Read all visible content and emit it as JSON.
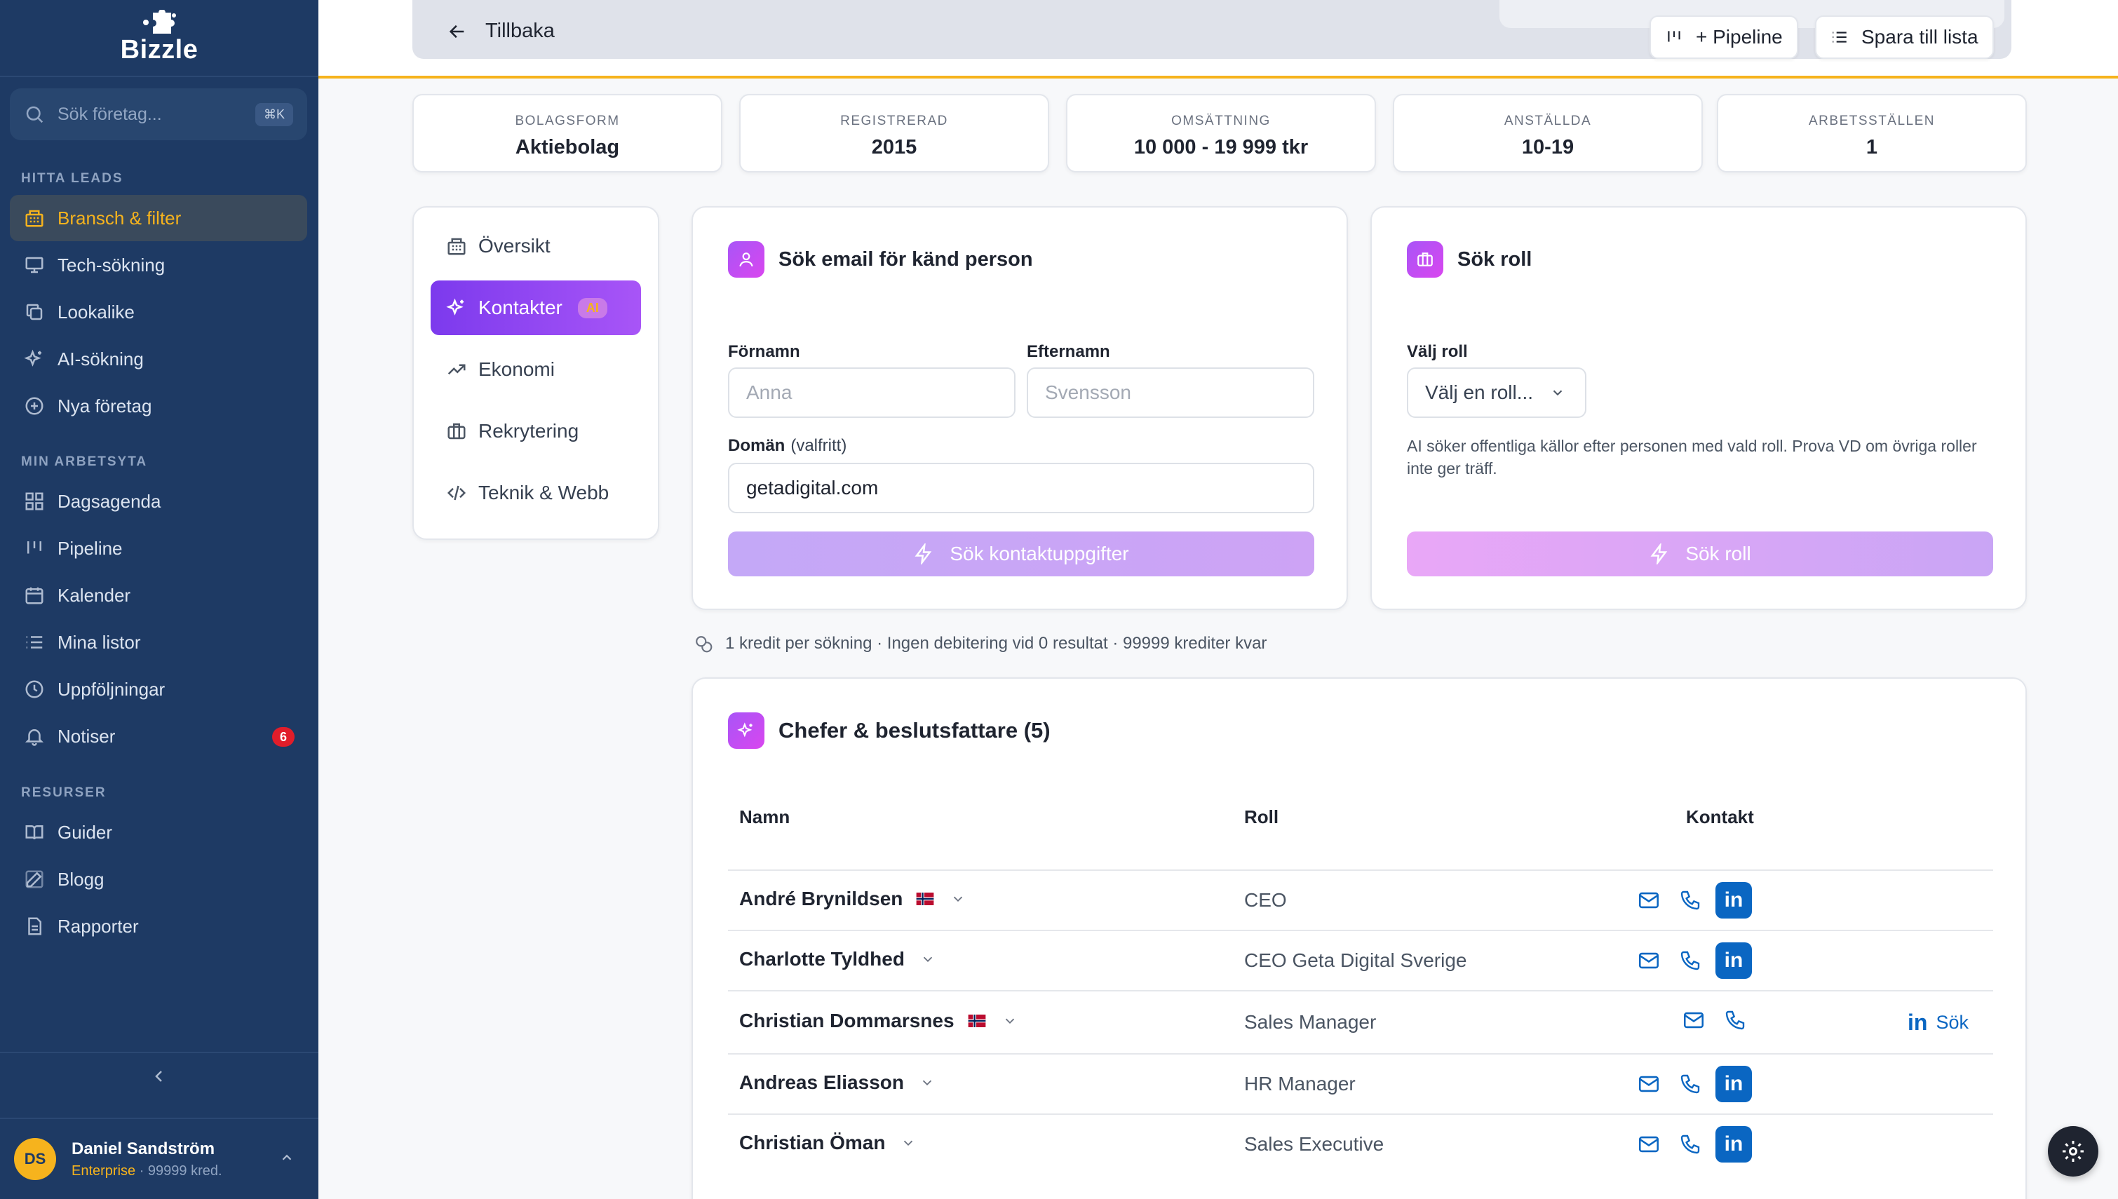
{
  "app": {
    "brand": "Bizzle"
  },
  "sidebar": {
    "search_placeholder": "Sök företag...",
    "search_shortcut": "⌘K",
    "sections": [
      {
        "title": "HITTA LEADS",
        "items": [
          {
            "label": "Bransch & filter",
            "icon": "filter-icon",
            "active": true
          },
          {
            "label": "Tech-sökning",
            "icon": "monitor-icon"
          },
          {
            "label": "Lookalike",
            "icon": "copy-icon"
          },
          {
            "label": "AI-sökning",
            "icon": "sparkles-icon"
          },
          {
            "label": "Nya företag",
            "icon": "plus-circle-icon"
          }
        ]
      },
      {
        "title": "MIN ARBETSYTA",
        "items": [
          {
            "label": "Dagsagenda",
            "icon": "grid-icon"
          },
          {
            "label": "Pipeline",
            "icon": "pipeline-icon"
          },
          {
            "label": "Kalender",
            "icon": "calendar-icon"
          },
          {
            "label": "Mina listor",
            "icon": "list-icon"
          },
          {
            "label": "Uppföljningar",
            "icon": "clock-icon"
          },
          {
            "label": "Notiser",
            "icon": "bell-icon",
            "badge": "6"
          }
        ]
      },
      {
        "title": "RESURSER",
        "items": [
          {
            "label": "Guider",
            "icon": "book-icon"
          },
          {
            "label": "Blogg",
            "icon": "edit-icon"
          },
          {
            "label": "Rapporter",
            "icon": "report-icon"
          }
        ]
      }
    ],
    "user": {
      "initials": "DS",
      "name": "Daniel Sandström",
      "plan": "Enterprise",
      "credits": "· 99999 kred."
    }
  },
  "topbar": {
    "back_label": "Tillbaka",
    "pipeline_label": "+ Pipeline",
    "save_label": "Spara till lista"
  },
  "stats": [
    {
      "label": "BOLAGSFORM",
      "value": "Aktiebolag"
    },
    {
      "label": "REGISTRERAD",
      "value": "2015"
    },
    {
      "label": "OMSÄTTNING",
      "value": "10 000 - 19 999 tkr"
    },
    {
      "label": "ANSTÄLLDA",
      "value": "10-19"
    },
    {
      "label": "ARBETSSTÄLLEN",
      "value": "1"
    }
  ],
  "tabs": [
    {
      "label": "Översikt"
    },
    {
      "label": "Kontakter",
      "ai": "AI",
      "active": true
    },
    {
      "label": "Ekonomi"
    },
    {
      "label": "Rekrytering"
    },
    {
      "label": "Teknik & Webb"
    }
  ],
  "email_search": {
    "title": "Sök email för känd person",
    "first_label": "Förnamn",
    "first_placeholder": "Anna",
    "last_label": "Efternamn",
    "last_placeholder": "Svensson",
    "domain_label": "Domän",
    "domain_optional": "(valfritt)",
    "domain_value": "getadigital.com",
    "button": "Sök kontaktuppgifter"
  },
  "role_search": {
    "title": "Sök roll",
    "role_label": "Välj roll",
    "role_placeholder": "Välj en roll...",
    "help": "AI söker offentliga källor efter personen med vald roll. Prova VD om övriga roller inte ger träff.",
    "button": "Sök roll"
  },
  "credits_note": "1 kredit per sökning · Ingen debitering vid 0 resultat · 99999 krediter kvar",
  "contacts": {
    "title": "Chefer & beslutsfattare (5)",
    "headers": {
      "name": "Namn",
      "role": "Roll",
      "contact": "Kontakt"
    },
    "linkedin_search": "Sök",
    "rows": [
      {
        "name": "André Brynildsen",
        "flag": "no",
        "role": "CEO",
        "linkedin": true
      },
      {
        "name": "Charlotte Tyldhed",
        "role": "CEO Geta Digital Sverige",
        "linkedin": true
      },
      {
        "name": "Christian Dommarsnes",
        "flag": "no",
        "role": "Sales Manager",
        "linkedin": false
      },
      {
        "name": "Andreas Eliasson",
        "role": "HR Manager",
        "linkedin": true
      },
      {
        "name": "Christian Öman",
        "role": "Sales Executive",
        "linkedin": true
      }
    ]
  },
  "colors": {
    "sidebar": "#1e3a64",
    "accent": "#f6b31d",
    "purple": "#8b5cf6",
    "linkedin": "#0a66c2"
  }
}
